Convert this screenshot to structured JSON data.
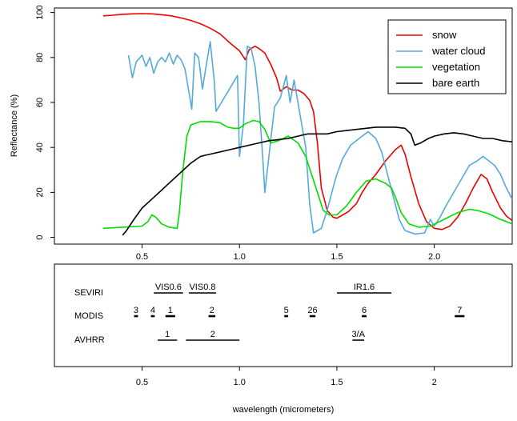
{
  "chart_data": [
    {
      "type": "line",
      "ylabel": "Reflectance (%)",
      "xlim": [
        0.05,
        2.4
      ],
      "ylim": [
        -3,
        102
      ],
      "x_ticks": [
        "0.5",
        "1.0",
        "1.5",
        "2.0"
      ],
      "y_ticks": [
        "0",
        "20",
        "40",
        "60",
        "80",
        "100"
      ],
      "legend_position": "top-right",
      "series": [
        {
          "name": "snow",
          "color": "#ee0000",
          "points": [
            [
              0.3,
              98.5
            ],
            [
              0.35,
              98.8
            ],
            [
              0.4,
              99.2
            ],
            [
              0.45,
              99.4
            ],
            [
              0.5,
              99.5
            ],
            [
              0.55,
              99.4
            ],
            [
              0.6,
              99.0
            ],
            [
              0.65,
              98.5
            ],
            [
              0.7,
              97.6
            ],
            [
              0.75,
              96.5
            ],
            [
              0.8,
              95.0
            ],
            [
              0.85,
              93.0
            ],
            [
              0.9,
              90.5
            ],
            [
              0.95,
              86.5
            ],
            [
              1.0,
              83.0
            ],
            [
              1.03,
              79.0
            ],
            [
              1.05,
              83.5
            ],
            [
              1.08,
              85.0
            ],
            [
              1.1,
              84.0
            ],
            [
              1.13,
              82.0
            ],
            [
              1.16,
              77.0
            ],
            [
              1.19,
              71.0
            ],
            [
              1.21,
              65.0
            ],
            [
              1.24,
              67.0
            ],
            [
              1.27,
              65.5
            ],
            [
              1.3,
              65.5
            ],
            [
              1.33,
              64.0
            ],
            [
              1.36,
              61.0
            ],
            [
              1.38,
              56.0
            ],
            [
              1.4,
              42.0
            ],
            [
              1.42,
              22.0
            ],
            [
              1.45,
              12.0
            ],
            [
              1.48,
              9.0
            ],
            [
              1.5,
              8.5
            ],
            [
              1.53,
              10.0
            ],
            [
              1.56,
              11.5
            ],
            [
              1.6,
              15.0
            ],
            [
              1.63,
              20.0
            ],
            [
              1.66,
              24.0
            ],
            [
              1.7,
              28.0
            ],
            [
              1.75,
              34.0
            ],
            [
              1.8,
              39.0
            ],
            [
              1.83,
              41.0
            ],
            [
              1.85,
              37.0
            ],
            [
              1.88,
              27.0
            ],
            [
              1.92,
              15.0
            ],
            [
              1.96,
              7.0
            ],
            [
              2.0,
              4.0
            ],
            [
              2.04,
              3.5
            ],
            [
              2.08,
              5.0
            ],
            [
              2.12,
              9.0
            ],
            [
              2.16,
              15.0
            ],
            [
              2.2,
              22.0
            ],
            [
              2.24,
              28.0
            ],
            [
              2.27,
              26.0
            ],
            [
              2.3,
              20.0
            ],
            [
              2.34,
              13.0
            ],
            [
              2.37,
              9.5
            ],
            [
              2.4,
              7.5
            ]
          ]
        },
        {
          "name": "water cloud",
          "color": "#55aadd",
          "points": [
            [
              0.43,
              81.0
            ],
            [
              0.45,
              71.0
            ],
            [
              0.47,
              78.0
            ],
            [
              0.5,
              81.0
            ],
            [
              0.52,
              76.0
            ],
            [
              0.54,
              80.0
            ],
            [
              0.56,
              73.0
            ],
            [
              0.58,
              78.0
            ],
            [
              0.6,
              80.0
            ],
            [
              0.62,
              78.0
            ],
            [
              0.64,
              82.0
            ],
            [
              0.66,
              77.0
            ],
            [
              0.68,
              81.0
            ],
            [
              0.7,
              79.0
            ],
            [
              0.72,
              75.0
            ],
            [
              0.74,
              65.0
            ],
            [
              0.755,
              57.0
            ],
            [
              0.77,
              82.0
            ],
            [
              0.79,
              80.0
            ],
            [
              0.81,
              66.0
            ],
            [
              0.83,
              77.0
            ],
            [
              0.85,
              87.0
            ],
            [
              0.87,
              70.0
            ],
            [
              0.88,
              56.0
            ],
            [
              0.99,
              72.0
            ],
            [
              1.0,
              36.0
            ],
            [
              1.02,
              50.0
            ],
            [
              1.04,
              85.0
            ],
            [
              1.06,
              84.0
            ],
            [
              1.08,
              76.0
            ],
            [
              1.1,
              60.0
            ],
            [
              1.12,
              35.0
            ],
            [
              1.13,
              20.0
            ],
            [
              1.15,
              35.0
            ],
            [
              1.18,
              58.0
            ],
            [
              1.21,
              62.0
            ],
            [
              1.24,
              72.0
            ],
            [
              1.26,
              60.0
            ],
            [
              1.28,
              70.0
            ],
            [
              1.3,
              60.0
            ],
            [
              1.32,
              50.0
            ],
            [
              1.34,
              40.0
            ],
            [
              1.36,
              15.0
            ],
            [
              1.38,
              2.0
            ],
            [
              1.42,
              4.0
            ],
            [
              1.45,
              12.0
            ],
            [
              1.48,
              22.0
            ],
            [
              1.5,
              28.0
            ],
            [
              1.53,
              35.0
            ],
            [
              1.57,
              41.0
            ],
            [
              1.6,
              43.0
            ],
            [
              1.63,
              45.0
            ],
            [
              1.66,
              47.0
            ],
            [
              1.7,
              44.0
            ],
            [
              1.73,
              38.0
            ],
            [
              1.76,
              28.0
            ],
            [
              1.79,
              18.0
            ],
            [
              1.82,
              8.0
            ],
            [
              1.85,
              3.0
            ],
            [
              1.9,
              1.5
            ],
            [
              1.95,
              2.0
            ],
            [
              1.98,
              8.0
            ],
            [
              2.0,
              5.0
            ],
            [
              2.03,
              9.0
            ],
            [
              2.06,
              14.0
            ],
            [
              2.1,
              20.0
            ],
            [
              2.14,
              26.0
            ],
            [
              2.18,
              32.0
            ],
            [
              2.22,
              34.0
            ],
            [
              2.25,
              36.0
            ],
            [
              2.28,
              34.0
            ],
            [
              2.31,
              32.0
            ],
            [
              2.34,
              28.0
            ],
            [
              2.37,
              22.0
            ],
            [
              2.4,
              17.0
            ]
          ]
        },
        {
          "name": "vegetation",
          "color": "#00dd00",
          "points": [
            [
              0.3,
              4.0
            ],
            [
              0.4,
              4.5
            ],
            [
              0.5,
              5.0
            ],
            [
              0.53,
              7.0
            ],
            [
              0.55,
              10.0
            ],
            [
              0.57,
              9.0
            ],
            [
              0.6,
              6.0
            ],
            [
              0.64,
              4.5
            ],
            [
              0.68,
              4.0
            ],
            [
              0.69,
              10.0
            ],
            [
              0.71,
              30.0
            ],
            [
              0.73,
              45.0
            ],
            [
              0.75,
              50.0
            ],
            [
              0.8,
              51.5
            ],
            [
              0.85,
              51.5
            ],
            [
              0.9,
              51.0
            ],
            [
              0.94,
              49.0
            ],
            [
              0.97,
              48.5
            ],
            [
              1.0,
              48.5
            ],
            [
              1.03,
              50.5
            ],
            [
              1.07,
              52.0
            ],
            [
              1.1,
              51.5
            ],
            [
              1.13,
              48.0
            ],
            [
              1.16,
              42.0
            ],
            [
              1.2,
              43.0
            ],
            [
              1.25,
              45.0
            ],
            [
              1.3,
              42.0
            ],
            [
              1.34,
              36.0
            ],
            [
              1.37,
              28.0
            ],
            [
              1.4,
              20.0
            ],
            [
              1.43,
              12.0
            ],
            [
              1.46,
              10.0
            ],
            [
              1.5,
              10.0
            ],
            [
              1.55,
              14.0
            ],
            [
              1.6,
              20.0
            ],
            [
              1.65,
              25.0
            ],
            [
              1.7,
              26.0
            ],
            [
              1.75,
              24.0
            ],
            [
              1.78,
              22.0
            ],
            [
              1.8,
              18.0
            ],
            [
              1.83,
              11.0
            ],
            [
              1.87,
              6.0
            ],
            [
              1.92,
              4.5
            ],
            [
              1.98,
              5.0
            ],
            [
              2.05,
              8.0
            ],
            [
              2.12,
              11.0
            ],
            [
              2.18,
              12.5
            ],
            [
              2.22,
              12.0
            ],
            [
              2.28,
              10.5
            ],
            [
              2.34,
              8.0
            ],
            [
              2.4,
              6.0
            ]
          ]
        },
        {
          "name": "bare earth",
          "color": "#000000",
          "points": [
            [
              0.4,
              1.0
            ],
            [
              0.42,
              3.0
            ],
            [
              0.45,
              7.0
            ],
            [
              0.5,
              13.0
            ],
            [
              0.55,
              17.0
            ],
            [
              0.6,
              21.0
            ],
            [
              0.65,
              25.0
            ],
            [
              0.7,
              29.0
            ],
            [
              0.75,
              33.0
            ],
            [
              0.8,
              36.0
            ],
            [
              0.85,
              37.0
            ],
            [
              0.9,
              38.0
            ],
            [
              0.95,
              39.0
            ],
            [
              1.0,
              40.0
            ],
            [
              1.05,
              41.0
            ],
            [
              1.1,
              42.0
            ],
            [
              1.15,
              43.0
            ],
            [
              1.2,
              43.5
            ],
            [
              1.25,
              44.0
            ],
            [
              1.3,
              45.0
            ],
            [
              1.35,
              46.0
            ],
            [
              1.4,
              46.0
            ],
            [
              1.45,
              46.0
            ],
            [
              1.5,
              47.0
            ],
            [
              1.55,
              47.5
            ],
            [
              1.6,
              48.0
            ],
            [
              1.65,
              48.5
            ],
            [
              1.7,
              49.0
            ],
            [
              1.75,
              49.0
            ],
            [
              1.8,
              49.0
            ],
            [
              1.85,
              48.5
            ],
            [
              1.88,
              46.0
            ],
            [
              1.9,
              41.0
            ],
            [
              1.93,
              42.0
            ],
            [
              1.97,
              44.0
            ],
            [
              2.0,
              45.0
            ],
            [
              2.05,
              46.0
            ],
            [
              2.1,
              46.5
            ],
            [
              2.15,
              46.0
            ],
            [
              2.2,
              45.0
            ],
            [
              2.25,
              44.0
            ],
            [
              2.3,
              44.0
            ],
            [
              2.35,
              43.0
            ],
            [
              2.4,
              42.5
            ]
          ]
        }
      ]
    },
    {
      "type": "bands",
      "xlabel": "wavelength (micrometers)",
      "xlim": [
        0.05,
        2.4
      ],
      "x_ticks": [
        "0.5",
        "1.0",
        "1.5",
        "2"
      ],
      "rows": [
        {
          "name": "SEVIRI",
          "bands": [
            {
              "label": "VIS0.6",
              "start": 0.56,
              "end": 0.71
            },
            {
              "label": "VIS0.8",
              "start": 0.74,
              "end": 0.88
            },
            {
              "label": "IR1.6",
              "start": 1.5,
              "end": 1.78
            }
          ]
        },
        {
          "name": "MODIS",
          "bands": [
            {
              "label": "3",
              "start": 0.459,
              "end": 0.479
            },
            {
              "label": "4",
              "start": 0.545,
              "end": 0.565
            },
            {
              "label": "1",
              "start": 0.62,
              "end": 0.67
            },
            {
              "label": "2",
              "start": 0.841,
              "end": 0.876
            },
            {
              "label": "5",
              "start": 1.23,
              "end": 1.25
            },
            {
              "label": "26",
              "start": 1.36,
              "end": 1.39
            },
            {
              "label": "6",
              "start": 1.628,
              "end": 1.652
            },
            {
              "label": "7",
              "start": 2.105,
              "end": 2.155
            }
          ]
        },
        {
          "name": "AVHRR",
          "bands": [
            {
              "label": "1",
              "start": 0.58,
              "end": 0.68
            },
            {
              "label": "2",
              "start": 0.725,
              "end": 1.0
            },
            {
              "label": "3/A",
              "start": 1.58,
              "end": 1.64
            }
          ]
        }
      ]
    }
  ]
}
